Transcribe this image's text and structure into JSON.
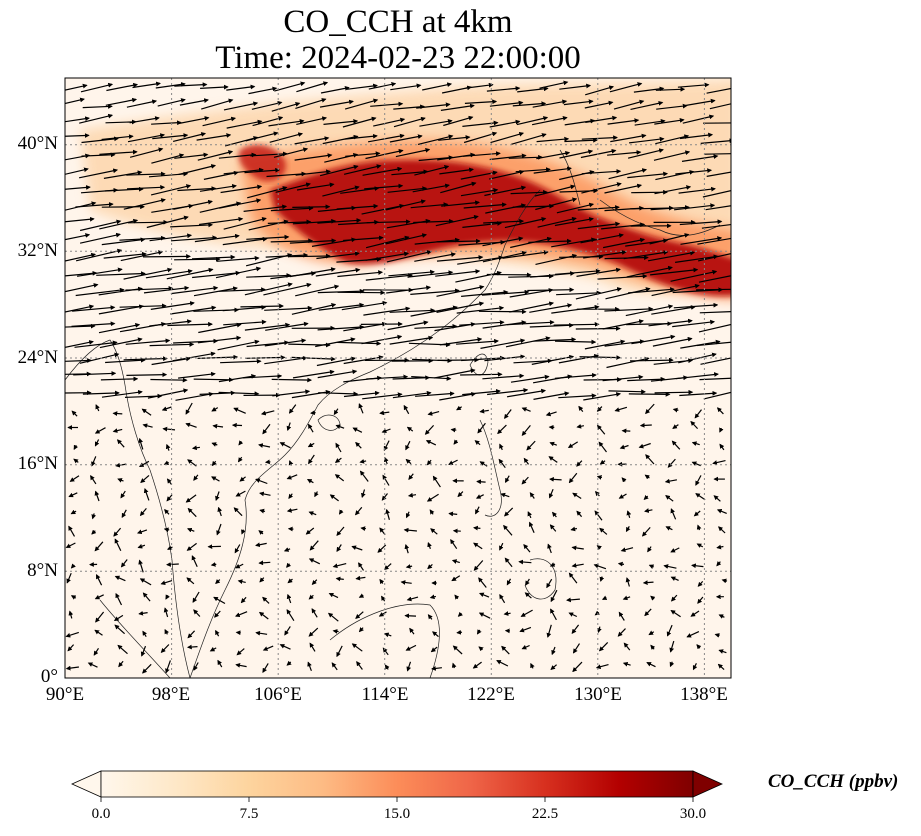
{
  "title": {
    "line1": "CO_CCH at 4km",
    "line2": "Time: 2024-02-23 22:00:00"
  },
  "map": {
    "projection": "PlateCarree",
    "lon_range": [
      90,
      140
    ],
    "lat_range": [
      0,
      45
    ],
    "gridlines": "dotted",
    "lon_ticks": [
      "90°E",
      "98°E",
      "106°E",
      "114°E",
      "122°E",
      "130°E",
      "138°E"
    ],
    "lat_ticks": [
      "0°",
      "8°N",
      "16°N",
      "24°N",
      "32°N",
      "40°N"
    ],
    "background_color": "#fff5eb",
    "wind_vectors": "black arrows, strong westerlies north of ~20°N, weak variable winds in the tropics",
    "plume_description": "high CO_CCH band from ~104°E to 140°E between ~30°N and 40°N"
  },
  "colorbar": {
    "label": "CO_CCH (ppbv)",
    "colormap": "OrRd",
    "range": [
      0,
      30
    ],
    "extend": "both",
    "ticks": [
      "0.0",
      "7.5",
      "15.0",
      "22.5",
      "30.0"
    ],
    "colors": [
      "#fff7ec",
      "#fee8c8",
      "#fdd49e",
      "#fdbb84",
      "#fc8d59",
      "#ef6548",
      "#d7301f",
      "#b30000",
      "#7f0000"
    ]
  }
}
